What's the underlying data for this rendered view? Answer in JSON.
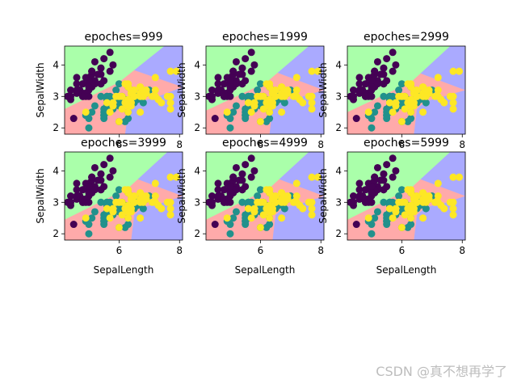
{
  "watermark": "CSDN @真不想再学了",
  "colors": {
    "region_class0": "#AAFFAA",
    "region_class1": "#FFAAAA",
    "region_class2": "#AAAAFF",
    "class0": "#440154",
    "class1": "#21918c",
    "class2": "#fde725"
  },
  "chart_data": [
    {
      "type": "scatter",
      "title": "epoches=999",
      "xlabel": "",
      "ylabel": "SepalWidth",
      "xlim": [
        4.2,
        8.1
      ],
      "ylim": [
        1.8,
        4.6
      ],
      "xticks": [
        6,
        8
      ],
      "yticks": [
        2,
        3,
        4
      ],
      "boundaries": {
        "green_top": [
          [
            4.2,
            2.6
          ],
          [
            6.0,
            3.45
          ],
          [
            7.5,
            4.6
          ]
        ],
        "pink_blue": [
          [
            6.2,
            1.8
          ],
          [
            6.3,
            2.5
          ],
          [
            6.6,
            2.8
          ],
          [
            7.3,
            3.0
          ],
          [
            8.1,
            3.3
          ]
        ]
      },
      "series_ref": "iris_points"
    },
    {
      "type": "scatter",
      "title": "epoches=1999",
      "xlabel": "",
      "ylabel": "SepalWidth",
      "xlim": [
        4.2,
        8.1
      ],
      "ylim": [
        1.8,
        4.6
      ],
      "xticks": [
        6,
        8
      ],
      "yticks": [
        2,
        3,
        4
      ],
      "boundaries": {
        "green_top": [
          [
            4.2,
            2.55
          ],
          [
            6.2,
            3.45
          ],
          [
            7.6,
            4.6
          ]
        ],
        "pink_blue": [
          [
            6.3,
            1.8
          ],
          [
            6.4,
            2.6
          ],
          [
            6.7,
            2.85
          ],
          [
            7.4,
            3.0
          ],
          [
            8.1,
            3.2
          ]
        ]
      },
      "series_ref": "iris_points"
    },
    {
      "type": "scatter",
      "title": "epoches=2999",
      "xlabel": "",
      "ylabel": "SepalWidth",
      "xlim": [
        4.2,
        8.1
      ],
      "ylim": [
        1.8,
        4.6
      ],
      "xticks": [
        6,
        8
      ],
      "yticks": [
        2,
        3,
        4
      ],
      "boundaries": {
        "green_top": [
          [
            4.2,
            2.5
          ],
          [
            6.3,
            3.45
          ],
          [
            7.6,
            4.6
          ]
        ],
        "pink_blue": [
          [
            6.4,
            1.8
          ],
          [
            6.5,
            2.6
          ],
          [
            6.8,
            2.85
          ],
          [
            7.4,
            3.0
          ],
          [
            8.1,
            3.2
          ]
        ]
      },
      "series_ref": "iris_points"
    },
    {
      "type": "scatter",
      "title": "epoches=3999",
      "xlabel": "SepalLength",
      "ylabel": "SepalWidth",
      "xlim": [
        4.2,
        8.1
      ],
      "ylim": [
        1.8,
        4.6
      ],
      "xticks": [
        6,
        8
      ],
      "yticks": [
        2,
        3,
        4
      ],
      "boundaries": {
        "green_top": [
          [
            4.2,
            2.45
          ],
          [
            6.3,
            3.45
          ],
          [
            7.6,
            4.6
          ]
        ],
        "pink_blue": [
          [
            6.4,
            1.8
          ],
          [
            6.5,
            2.6
          ],
          [
            6.8,
            2.85
          ],
          [
            7.5,
            3.0
          ],
          [
            8.1,
            3.2
          ]
        ]
      },
      "series_ref": "iris_points"
    },
    {
      "type": "scatter",
      "title": "epoches=4999",
      "xlabel": "SepalLength",
      "ylabel": "SepalWidth",
      "xlim": [
        4.2,
        8.1
      ],
      "ylim": [
        1.8,
        4.6
      ],
      "xticks": [
        6,
        8
      ],
      "yticks": [
        2,
        3,
        4
      ],
      "boundaries": {
        "green_top": [
          [
            4.2,
            2.45
          ],
          [
            6.3,
            3.45
          ],
          [
            7.6,
            4.6
          ]
        ],
        "pink_blue": [
          [
            6.4,
            1.8
          ],
          [
            6.5,
            2.6
          ],
          [
            6.8,
            2.85
          ],
          [
            7.5,
            3.0
          ],
          [
            8.1,
            3.2
          ]
        ]
      },
      "series_ref": "iris_points"
    },
    {
      "type": "scatter",
      "title": "epoches=5999",
      "xlabel": "SepalLength",
      "ylabel": "SepalWidth",
      "xlim": [
        4.2,
        8.1
      ],
      "ylim": [
        1.8,
        4.6
      ],
      "xticks": [
        6,
        8
      ],
      "yticks": [
        2,
        3,
        4
      ],
      "boundaries": {
        "green_top": [
          [
            4.2,
            2.45
          ],
          [
            6.3,
            3.45
          ],
          [
            7.6,
            4.6
          ]
        ],
        "pink_blue": [
          [
            6.4,
            1.8
          ],
          [
            6.5,
            2.6
          ],
          [
            6.8,
            2.85
          ],
          [
            7.5,
            3.0
          ],
          [
            8.1,
            3.2
          ]
        ]
      },
      "series_ref": "iris_points"
    }
  ],
  "iris_points": {
    "class0": [
      [
        5.1,
        3.5
      ],
      [
        4.9,
        3.0
      ],
      [
        4.7,
        3.2
      ],
      [
        4.6,
        3.1
      ],
      [
        5.0,
        3.6
      ],
      [
        5.4,
        3.9
      ],
      [
        4.6,
        3.4
      ],
      [
        5.0,
        3.4
      ],
      [
        4.4,
        2.9
      ],
      [
        4.9,
        3.1
      ],
      [
        5.4,
        3.7
      ],
      [
        4.8,
        3.4
      ],
      [
        4.8,
        3.0
      ],
      [
        4.3,
        3.0
      ],
      [
        5.8,
        4.0
      ],
      [
        5.7,
        4.4
      ],
      [
        5.4,
        3.9
      ],
      [
        5.1,
        3.5
      ],
      [
        5.7,
        3.8
      ],
      [
        5.1,
        3.8
      ],
      [
        5.4,
        3.4
      ],
      [
        5.1,
        3.7
      ],
      [
        4.6,
        3.6
      ],
      [
        5.1,
        3.3
      ],
      [
        4.8,
        3.4
      ],
      [
        5.0,
        3.0
      ],
      [
        5.0,
        3.4
      ],
      [
        5.2,
        3.5
      ],
      [
        5.2,
        3.4
      ],
      [
        4.7,
        3.2
      ],
      [
        4.8,
        3.1
      ],
      [
        5.4,
        3.4
      ],
      [
        5.2,
        4.1
      ],
      [
        5.5,
        4.2
      ],
      [
        4.9,
        3.1
      ],
      [
        5.0,
        3.2
      ],
      [
        5.5,
        3.5
      ],
      [
        4.9,
        3.6
      ],
      [
        4.4,
        3.0
      ],
      [
        5.1,
        3.4
      ],
      [
        5.0,
        3.5
      ],
      [
        4.5,
        2.3
      ],
      [
        4.4,
        3.2
      ],
      [
        5.0,
        3.5
      ],
      [
        5.1,
        3.8
      ],
      [
        4.8,
        3.0
      ],
      [
        5.1,
        3.8
      ],
      [
        4.6,
        3.2
      ],
      [
        5.3,
        3.7
      ],
      [
        5.0,
        3.3
      ]
    ],
    "class1": [
      [
        7.0,
        3.2
      ],
      [
        6.4,
        3.2
      ],
      [
        6.9,
        3.1
      ],
      [
        5.5,
        2.3
      ],
      [
        6.5,
        2.8
      ],
      [
        5.7,
        2.8
      ],
      [
        6.3,
        3.3
      ],
      [
        4.9,
        2.4
      ],
      [
        6.6,
        2.9
      ],
      [
        5.2,
        2.7
      ],
      [
        5.0,
        2.0
      ],
      [
        5.9,
        3.0
      ],
      [
        6.0,
        2.2
      ],
      [
        6.1,
        2.9
      ],
      [
        5.6,
        2.9
      ],
      [
        6.7,
        3.1
      ],
      [
        5.6,
        3.0
      ],
      [
        5.8,
        2.7
      ],
      [
        6.2,
        2.2
      ],
      [
        5.6,
        2.5
      ],
      [
        5.9,
        3.2
      ],
      [
        6.1,
        2.8
      ],
      [
        6.3,
        2.5
      ],
      [
        6.1,
        2.8
      ],
      [
        6.4,
        2.9
      ],
      [
        6.6,
        3.0
      ],
      [
        6.8,
        2.8
      ],
      [
        6.7,
        3.0
      ],
      [
        6.0,
        2.9
      ],
      [
        5.7,
        2.6
      ],
      [
        5.5,
        2.4
      ],
      [
        5.5,
        2.4
      ],
      [
        5.8,
        2.7
      ],
      [
        6.0,
        2.7
      ],
      [
        5.4,
        3.0
      ],
      [
        6.0,
        3.4
      ],
      [
        6.7,
        3.1
      ],
      [
        6.3,
        2.3
      ],
      [
        5.6,
        3.0
      ],
      [
        5.5,
        2.5
      ],
      [
        5.5,
        2.6
      ],
      [
        6.1,
        3.0
      ],
      [
        5.8,
        2.6
      ],
      [
        5.0,
        2.3
      ],
      [
        5.6,
        2.7
      ],
      [
        5.7,
        3.0
      ],
      [
        5.7,
        2.9
      ],
      [
        6.2,
        2.9
      ],
      [
        5.1,
        2.5
      ],
      [
        5.7,
        2.8
      ]
    ],
    "class2": [
      [
        6.3,
        3.3
      ],
      [
        5.8,
        2.7
      ],
      [
        7.1,
        3.0
      ],
      [
        6.3,
        2.9
      ],
      [
        6.5,
        3.0
      ],
      [
        7.6,
        3.0
      ],
      [
        4.9,
        2.5
      ],
      [
        7.3,
        2.9
      ],
      [
        6.7,
        2.5
      ],
      [
        7.2,
        3.6
      ],
      [
        6.5,
        3.2
      ],
      [
        6.4,
        2.7
      ],
      [
        6.8,
        3.0
      ],
      [
        5.7,
        2.5
      ],
      [
        5.8,
        2.8
      ],
      [
        6.4,
        3.2
      ],
      [
        6.5,
        3.0
      ],
      [
        7.7,
        3.8
      ],
      [
        7.7,
        2.6
      ],
      [
        6.0,
        2.2
      ],
      [
        6.9,
        3.2
      ],
      [
        5.6,
        2.8
      ],
      [
        7.7,
        2.8
      ],
      [
        6.3,
        2.7
      ],
      [
        6.7,
        3.3
      ],
      [
        7.2,
        3.2
      ],
      [
        6.2,
        2.8
      ],
      [
        6.1,
        3.0
      ],
      [
        6.4,
        2.8
      ],
      [
        7.2,
        3.0
      ],
      [
        7.4,
        2.8
      ],
      [
        7.9,
        3.8
      ],
      [
        6.4,
        2.8
      ],
      [
        6.3,
        2.8
      ],
      [
        6.1,
        2.6
      ],
      [
        7.7,
        3.0
      ],
      [
        6.3,
        3.4
      ],
      [
        6.4,
        3.1
      ],
      [
        6.0,
        3.0
      ],
      [
        6.9,
        3.1
      ],
      [
        6.7,
        3.1
      ],
      [
        6.9,
        3.1
      ],
      [
        5.8,
        2.7
      ],
      [
        6.8,
        3.2
      ],
      [
        6.7,
        3.3
      ],
      [
        6.7,
        3.0
      ],
      [
        6.3,
        2.5
      ],
      [
        6.5,
        3.0
      ],
      [
        6.2,
        3.4
      ],
      [
        5.9,
        3.0
      ]
    ]
  }
}
